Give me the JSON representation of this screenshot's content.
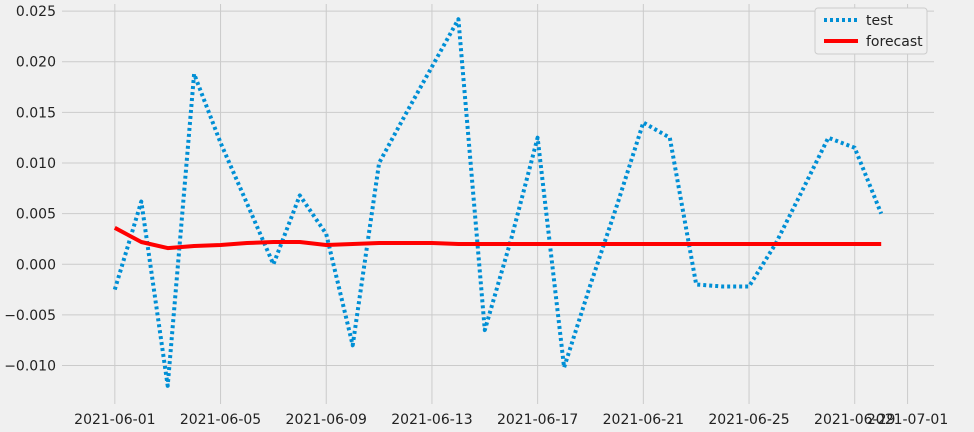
{
  "chart_data": {
    "type": "line",
    "title": "",
    "xlabel": "",
    "ylabel": "",
    "x_axis_type": "date",
    "xlim": [
      "2021-05-30",
      "2021-07-02"
    ],
    "ylim": [
      -0.0138,
      0.0257
    ],
    "x_ticks": [
      "2021-06-01",
      "2021-06-05",
      "2021-06-09",
      "2021-06-13",
      "2021-06-17",
      "2021-06-21",
      "2021-06-25",
      "2021-06-29",
      "2021-07-01"
    ],
    "y_ticks": [
      -0.01,
      -0.005,
      0.0,
      0.005,
      0.01,
      0.015,
      0.02,
      0.025
    ],
    "y_tick_labels": [
      "−0.010",
      "−0.005",
      "0.000",
      "0.005",
      "0.010",
      "0.015",
      "0.020",
      "0.025"
    ],
    "grid": true,
    "legend_position": "top-right",
    "colors": {
      "background": "#f0f0f0",
      "grid": "#cbcbcb",
      "test": "#008fd5",
      "forecast": "#ff0000"
    },
    "x": [
      "2021-06-01",
      "2021-06-02",
      "2021-06-03",
      "2021-06-04",
      "2021-06-05",
      "2021-06-06",
      "2021-06-07",
      "2021-06-08",
      "2021-06-09",
      "2021-06-10",
      "2021-06-11",
      "2021-06-12",
      "2021-06-13",
      "2021-06-14",
      "2021-06-15",
      "2021-06-16",
      "2021-06-17",
      "2021-06-18",
      "2021-06-19",
      "2021-06-20",
      "2021-06-21",
      "2021-06-22",
      "2021-06-23",
      "2021-06-24",
      "2021-06-25",
      "2021-06-26",
      "2021-06-27",
      "2021-06-28",
      "2021-06-29",
      "2021-06-30"
    ],
    "series": [
      {
        "name": "test",
        "style": "dotted",
        "values": [
          -0.0025,
          0.0062,
          -0.012,
          0.0188,
          0.012,
          0.006,
          0.0,
          0.0068,
          0.003,
          -0.008,
          0.01,
          0.0148,
          0.0195,
          0.0242,
          -0.0065,
          0.0025,
          0.0125,
          -0.0102,
          -0.002,
          0.0058,
          0.014,
          0.0125,
          -0.002,
          -0.0022,
          -0.0022,
          0.002,
          0.0072,
          0.0125,
          0.0115,
          0.005
        ]
      },
      {
        "name": "forecast",
        "style": "solid",
        "values": [
          0.0036,
          0.0022,
          0.0016,
          0.0018,
          0.0019,
          0.0021,
          0.0022,
          0.0022,
          0.0019,
          0.002,
          0.0021,
          0.0021,
          0.0021,
          0.002,
          0.002,
          0.002,
          0.002,
          0.002,
          0.002,
          0.002,
          0.002,
          0.002,
          0.002,
          0.002,
          0.002,
          0.002,
          0.002,
          0.002,
          0.002,
          0.002
        ]
      }
    ]
  }
}
